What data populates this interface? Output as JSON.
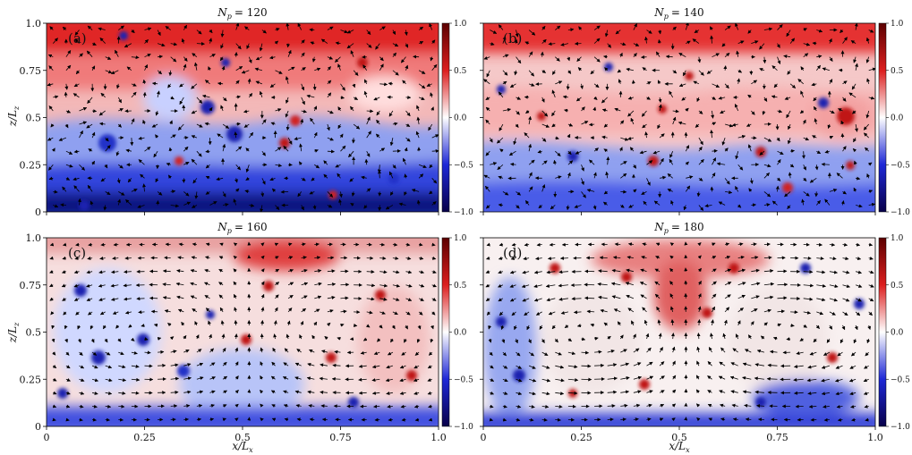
{
  "figure": {
    "colorbar": {
      "ticks": [
        "1.0",
        "0.5",
        "0.0",
        "−0.5",
        "−1.0"
      ],
      "colormap": [
        "#08004a",
        "#1e28d6",
        "#ffffff",
        "#dc1e1e",
        "#5c0000"
      ]
    },
    "axes": {
      "xlabel": "x/L",
      "xlabel_sub": "x",
      "ylabel": "z/L",
      "ylabel_sub": "z",
      "xticks": [
        "0",
        "0.25",
        "0.5",
        "0.75",
        "1.0"
      ],
      "yticks": [
        "0",
        "0.25",
        "0.5",
        "0.75",
        "1.0"
      ]
    }
  },
  "chart_data": [
    {
      "type": "heatmap",
      "panel_label": "(a)",
      "title_var": "N",
      "title_sub": "p",
      "title_value": "= 120",
      "xlim": [
        0,
        1
      ],
      "ylim": [
        0,
        1
      ],
      "clim": [
        -1,
        1
      ],
      "flow": "weak, disordered arrows",
      "field": "mostly red top half, blue bottom half, scattered blobs"
    },
    {
      "type": "heatmap",
      "panel_label": "(b)",
      "title_var": "N",
      "title_sub": "p",
      "title_value": "= 140",
      "xlim": [
        0,
        1
      ],
      "ylim": [
        0,
        1
      ],
      "clim": [
        -1,
        1
      ],
      "flow": "weak, disordered arrows",
      "field": "mostly red top half, blue bottom half, scattered blobs"
    },
    {
      "type": "heatmap",
      "panel_label": "(c)",
      "title_var": "N",
      "title_sub": "p",
      "title_value": "= 160",
      "xlim": [
        0,
        1
      ],
      "ylim": [
        0,
        1
      ],
      "clim": [
        -1,
        1
      ],
      "flow": "two counter-rotating rolls",
      "field": "mixed red and blue, blue near bottom"
    },
    {
      "type": "heatmap",
      "panel_label": "(d)",
      "title_var": "N",
      "title_sub": "p",
      "title_value": "= 180",
      "xlim": [
        0,
        1
      ],
      "ylim": [
        0,
        1
      ],
      "clim": [
        -1,
        1
      ],
      "flow": "two strong counter-rotating rolls",
      "field": "light colors inside rolls, red and blue along roll edges"
    }
  ]
}
